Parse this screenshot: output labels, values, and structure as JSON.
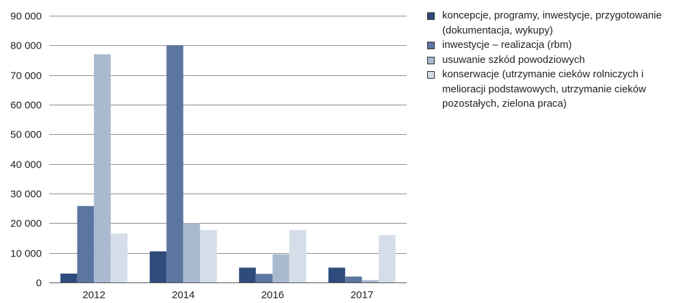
{
  "chart_data": {
    "type": "bar",
    "title": "",
    "xlabel": "",
    "ylabel": "",
    "categories": [
      "2012",
      "2014",
      "2016",
      "2017"
    ],
    "ylim": [
      0,
      90000
    ],
    "yticks": [
      0,
      10000,
      20000,
      30000,
      40000,
      50000,
      60000,
      70000,
      80000,
      90000
    ],
    "ytick_labels": [
      "0",
      "10 000",
      "20 000",
      "30 000",
      "40 000",
      "50 000",
      "60 000",
      "70 000",
      "80 000",
      "90 000"
    ],
    "grid": true,
    "legend_position": "right",
    "series": [
      {
        "name": "koncepcje, programy, inwestycje, przygotowanie (dokumentacja, wykupy)",
        "color": "#2f4b7c",
        "values": [
          3000,
          10500,
          5000,
          5000
        ]
      },
      {
        "name": "inwestycje – realizacja (rbm)",
        "color": "#5b76a0",
        "values": [
          25800,
          80000,
          2900,
          2000
        ]
      },
      {
        "name": "usuwanie szkód powodziowych",
        "color": "#a9b9cf",
        "values": [
          77000,
          20000,
          9500,
          800
        ]
      },
      {
        "name": "konserwacje (utrzymanie cieków rolniczych i melioracji podstawowych, utrzymanie cieków pozostałych, zielona praca)",
        "color": "#d5dde8",
        "values": [
          16500,
          17700,
          17700,
          16000
        ]
      }
    ]
  }
}
